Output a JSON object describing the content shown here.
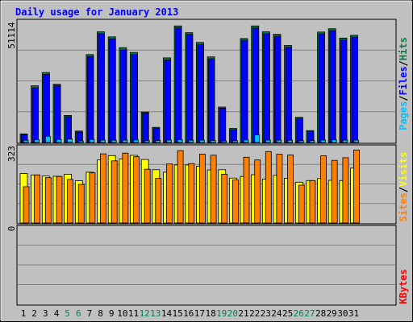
{
  "colors": {
    "background": "#c0c0c0",
    "panel": "#c0c0c0",
    "grid": "#808080",
    "title": "#0000ff",
    "hits": "#008040",
    "files": "#0000ff",
    "pages": "#00c0ff",
    "visits": "#ffff00",
    "sites": "#ff8000",
    "kbytes": "#ff0000",
    "separator_dark": "#000000",
    "ytick": "#000000",
    "day_weekday": "#000000",
    "day_weekend": "#00805c"
  },
  "chart_data": [
    {
      "type": "bar",
      "title": "Daily usage for January 2013",
      "panel": "hits-files-pages",
      "ymax_label": "51114",
      "ylim": [
        0,
        51114
      ],
      "grid": true,
      "legend": [
        "Pages",
        "/",
        "Files",
        "/",
        "Hits"
      ],
      "legend_placement": "right, vertical",
      "categories": [
        "1",
        "2",
        "3",
        "4",
        "5",
        "6",
        "7",
        "8",
        "9",
        "10",
        "11",
        "12",
        "13",
        "14",
        "15",
        "16",
        "17",
        "18",
        "19",
        "20",
        "21",
        "22",
        "23",
        "24",
        "25",
        "26",
        "27",
        "28",
        "29",
        "30",
        "31"
      ],
      "weekend_days": [
        "5",
        "6",
        "12",
        "13",
        "19",
        "20",
        "26",
        "27"
      ],
      "series": [
        {
          "name": "Hits",
          "values": [
            3700,
            24300,
            30000,
            25000,
            11600,
            4900,
            37700,
            47500,
            45300,
            40700,
            38600,
            13100,
            6500,
            36300,
            50000,
            47100,
            42900,
            36700,
            15200,
            6000,
            44600,
            50000,
            47500,
            46400,
            41600,
            10800,
            5100,
            47400,
            48800,
            44800,
            46000
          ]
        },
        {
          "name": "Files",
          "values": [
            3300,
            23500,
            29200,
            24400,
            11100,
            4500,
            36900,
            46700,
            44500,
            39800,
            37800,
            12600,
            6000,
            35400,
            49200,
            46300,
            42000,
            35900,
            14700,
            5500,
            43800,
            49100,
            46700,
            45600,
            40800,
            10300,
            4600,
            46600,
            48000,
            44000,
            45200
          ]
        },
        {
          "name": "Pages",
          "values": [
            950,
            1200,
            2700,
            1300,
            1500,
            700,
            1300,
            1000,
            950,
            1000,
            1100,
            750,
            850,
            1050,
            1200,
            950,
            1000,
            850,
            650,
            750,
            1100,
            3300,
            1050,
            1000,
            950,
            750,
            800,
            1050,
            1150,
            1000,
            1000
          ]
        }
      ]
    },
    {
      "type": "bar",
      "panel": "visits-sites",
      "ymax_label": "323",
      "ylim": [
        0,
        323
      ],
      "grid": true,
      "legend": [
        "Sites",
        "/",
        "Visits"
      ],
      "legend_placement": "right, vertical",
      "categories": [
        "1",
        "2",
        "3",
        "4",
        "5",
        "6",
        "7",
        "8",
        "9",
        "10",
        "11",
        "12",
        "13",
        "14",
        "15",
        "16",
        "17",
        "18",
        "19",
        "20",
        "21",
        "22",
        "23",
        "24",
        "25",
        "26",
        "27",
        "28",
        "29",
        "30",
        "31"
      ],
      "series": [
        {
          "name": "Visits",
          "values": [
            218,
            212,
            207,
            206,
            215,
            186,
            224,
            278,
            297,
            283,
            298,
            280,
            235,
            224,
            256,
            256,
            250,
            234,
            235,
            198,
            205,
            213,
            193,
            210,
            197,
            180,
            187,
            196,
            188,
            187,
            242
          ]
        },
        {
          "name": "Sites",
          "values": [
            160,
            212,
            200,
            205,
            192,
            170,
            221,
            305,
            274,
            308,
            292,
            237,
            197,
            260,
            319,
            262,
            304,
            299,
            215,
            190,
            290,
            278,
            315,
            303,
            300,
            167,
            187,
            296,
            276,
            288,
            322
          ]
        }
      ]
    },
    {
      "type": "bar",
      "panel": "kbytes",
      "ymax_label": "0",
      "ylim": [
        0,
        1
      ],
      "grid": true,
      "legend": [
        "KBytes"
      ],
      "legend_placement": "right, vertical",
      "categories": [
        "1",
        "2",
        "3",
        "4",
        "5",
        "6",
        "7",
        "8",
        "9",
        "10",
        "11",
        "12",
        "13",
        "14",
        "15",
        "16",
        "17",
        "18",
        "19",
        "20",
        "21",
        "22",
        "23",
        "24",
        "25",
        "26",
        "27",
        "28",
        "29",
        "30",
        "31"
      ],
      "series": [
        {
          "name": "KBytes",
          "values": [
            0,
            0,
            0,
            0,
            0,
            0,
            0,
            0,
            0,
            0,
            0,
            0,
            0,
            0,
            0,
            0,
            0,
            0,
            0,
            0,
            0,
            0,
            0,
            0,
            0,
            0,
            0,
            0,
            0,
            0,
            0
          ]
        }
      ]
    }
  ]
}
